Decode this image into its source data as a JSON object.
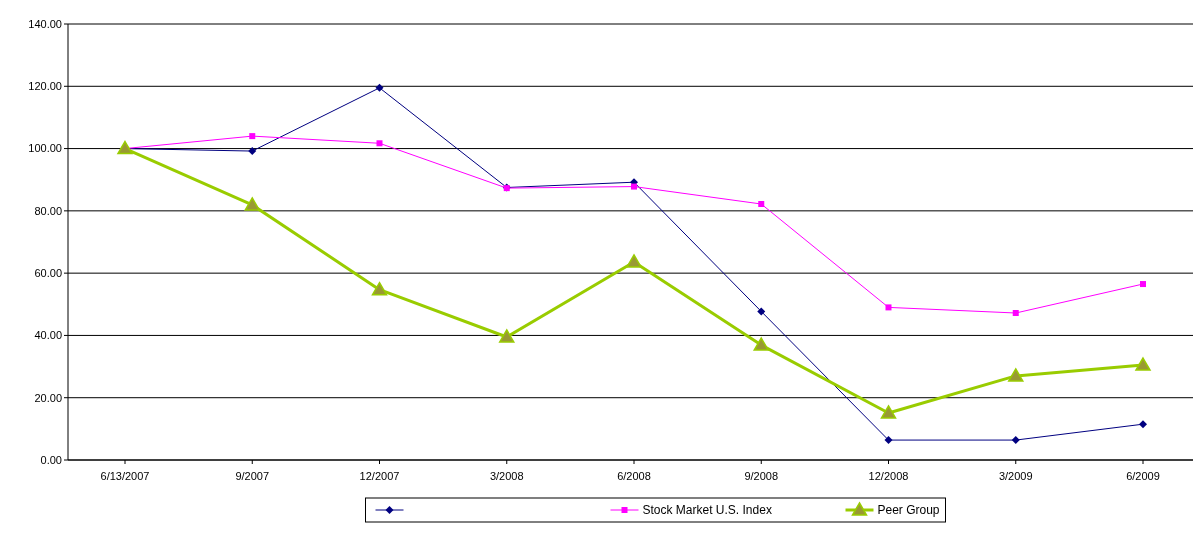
{
  "chart_data": {
    "type": "line",
    "categories": [
      "6/13/2007",
      "9/2007",
      "12/2007",
      "3/2008",
      "6/2008",
      "9/2008",
      "12/2008",
      "3/2009",
      "6/2009"
    ],
    "series": [
      {
        "color": "#000080",
        "marker": "diamond",
        "values": [
          100,
          99.2,
          119.5,
          87.5,
          89.2,
          47.7,
          6.4,
          6.4,
          11.5
        ]
      },
      {
        "name": "Stock Market U.S. Index",
        "color": "#ff00ff",
        "marker": "square",
        "values": [
          100,
          104,
          101.7,
          87.3,
          87.8,
          82.2,
          49,
          47.2,
          56.5
        ]
      },
      {
        "name": "Peer Group",
        "color": "#99cc00",
        "marker": "triangle",
        "values": [
          100,
          81.9,
          54.7,
          39.5,
          63.6,
          36.9,
          15.1,
          27,
          30.5
        ]
      }
    ],
    "ylim": [
      0,
      140
    ],
    "yticks": [
      {
        "value": 0,
        "label": "0.00"
      },
      {
        "value": 20,
        "label": "20.00"
      },
      {
        "value": 40,
        "label": "40.00"
      },
      {
        "value": 60,
        "label": "60.00"
      },
      {
        "value": 80,
        "label": "80.00"
      },
      {
        "value": 100,
        "label": "100.00"
      },
      {
        "value": 120,
        "label": "120.00"
      },
      {
        "value": 140,
        "label": "140.00"
      }
    ],
    "grid": "y",
    "legend": "bottom"
  }
}
